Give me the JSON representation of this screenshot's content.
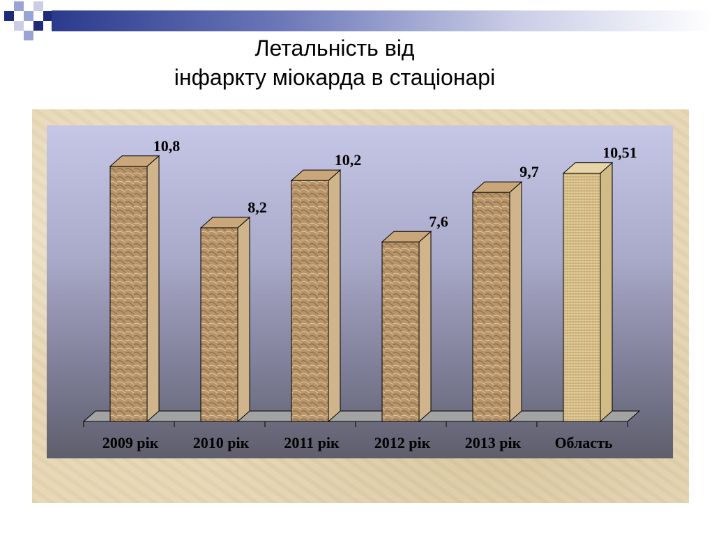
{
  "colors": {
    "accent_dark": "#1e2b7a",
    "accent_light": "#9aa3d6",
    "bar_front": "#b89468",
    "bar_side": "#d9c19a",
    "bar_top": "#c9a77a",
    "region_bar": "#d6c08f"
  },
  "chart_data": {
    "type": "bar",
    "title": "Летальність від інфаркту міокарда в стаціонарі",
    "title_lines": [
      "Летальність від",
      "інфаркту міокарда в стаціонарі"
    ],
    "categories": [
      "2009 рік",
      "2010 рік",
      "2011 рік",
      "2012 рік",
      "2013 рік",
      "Область"
    ],
    "values": [
      10.8,
      8.2,
      10.2,
      7.6,
      9.7,
      10.51
    ],
    "value_labels": [
      "10,8",
      "8,2",
      "10,2",
      "7,6",
      "9,7",
      "10,51"
    ],
    "ylim": [
      0,
      11
    ],
    "grid": false,
    "legend": "none",
    "xlabel": "",
    "ylabel": ""
  }
}
